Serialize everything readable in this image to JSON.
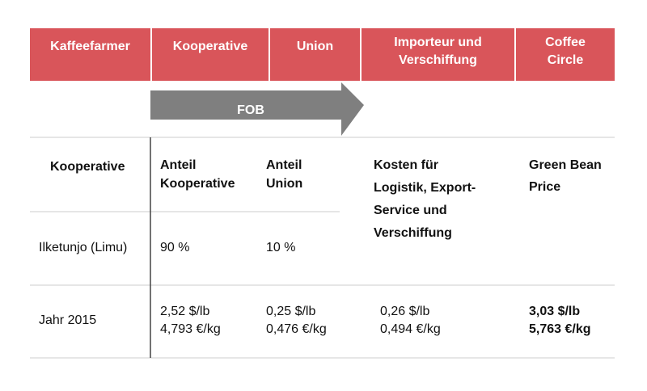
{
  "process": [
    [
      "Kaffeefarmer"
    ],
    [
      "Kooperative"
    ],
    [
      "Union"
    ],
    [
      "Importeur und",
      "Verschiffung"
    ],
    [
      "Coffee",
      "Circle"
    ]
  ],
  "arrow_label": "FOB",
  "table": {
    "header": [
      [
        "Kooperative"
      ],
      [
        "Anteil",
        "Kooperative"
      ],
      [
        "Anteil",
        "Union"
      ],
      [
        "Kosten für",
        "Logistik, Export-",
        "Service und",
        "Verschiffung"
      ],
      [
        "Green Bean",
        "Price"
      ]
    ],
    "rows": [
      [
        [
          "Ilketunjo (Limu)"
        ],
        [
          "90 %"
        ],
        [
          "10 %"
        ]
      ],
      [
        [
          "Jahr 2015"
        ],
        [
          "2,52 $/lb",
          "4,793 €/kg"
        ],
        [
          "0,25 $/lb",
          "0,476 €/kg"
        ],
        [
          "0,26 $/lb",
          "0,494 €/kg"
        ],
        [
          "3,03 $/lb",
          "5,763 €/kg"
        ]
      ]
    ]
  }
}
